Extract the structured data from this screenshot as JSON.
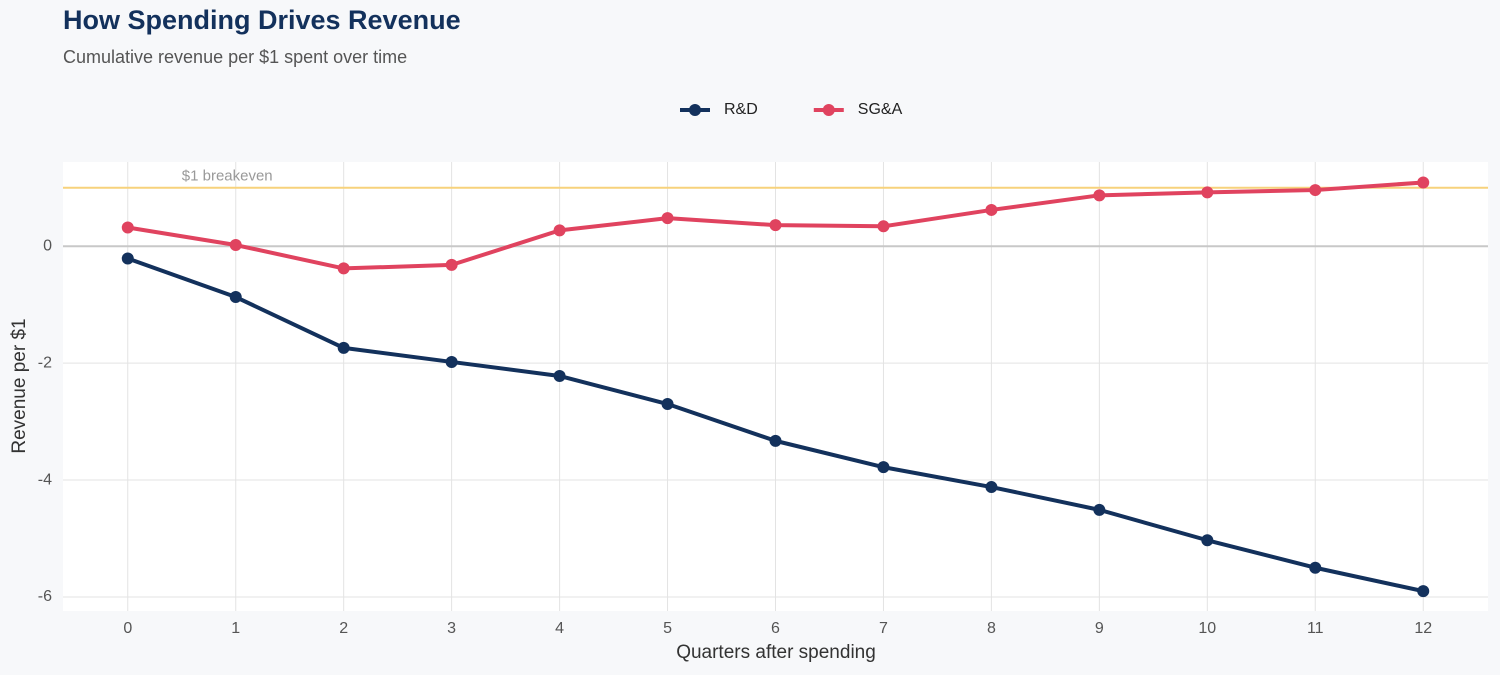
{
  "chart_data": {
    "type": "line",
    "title": "How Spending Drives Revenue",
    "subtitle": "Cumulative revenue per $1 spent over time",
    "x_label": "Quarters after spending",
    "y_label": "Revenue per $1",
    "x": [
      0,
      1,
      2,
      3,
      4,
      5,
      6,
      7,
      8,
      9,
      10,
      11,
      12
    ],
    "series": [
      {
        "name": "R&D",
        "color": "#13315c",
        "values": [
          -0.21,
          -0.87,
          -1.74,
          -1.98,
          -2.22,
          -2.7,
          -3.33,
          -3.78,
          -4.12,
          -4.51,
          -5.03,
          -5.5,
          -5.9
        ]
      },
      {
        "name": "SG&A",
        "color": "#e0435f",
        "values": [
          0.32,
          0.02,
          -0.38,
          -0.32,
          0.27,
          0.48,
          0.36,
          0.34,
          0.62,
          0.87,
          0.92,
          0.96,
          1.09
        ]
      }
    ],
    "reference_line": {
      "value": 1,
      "label": "$1 breakeven",
      "color": "#f7d27c"
    },
    "xlim": [
      -0.6,
      12.6
    ],
    "ylim": [
      -6.24,
      1.44
    ],
    "xticks": [
      0,
      1,
      2,
      3,
      4,
      5,
      6,
      7,
      8,
      9,
      10,
      11,
      12
    ],
    "yticks": [
      -6,
      -4,
      -2,
      0
    ],
    "grid": true,
    "legend": "top"
  }
}
